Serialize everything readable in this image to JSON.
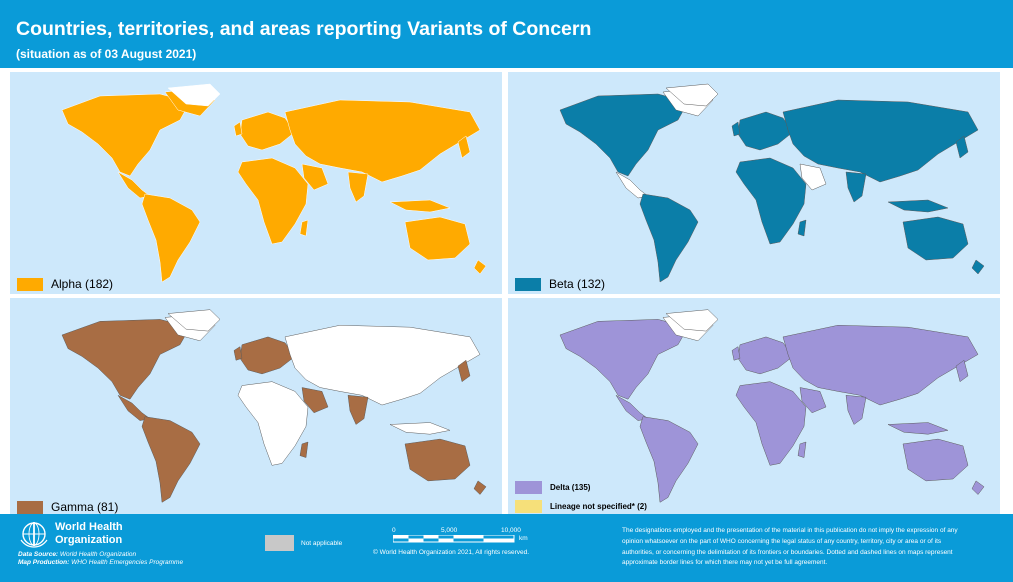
{
  "title": "Countries, territories, and areas reporting Variants of Concern",
  "subtitle": "(situation as of 03 August 2021)",
  "maps": [
    {
      "label": "Alpha (182)",
      "color": "#ffaa00"
    },
    {
      "label": "Beta (132)",
      "color": "#0b7ea8"
    },
    {
      "label": "Gamma (81)",
      "color": "#a86d44"
    },
    {
      "label": "Delta (135)",
      "color": "#9e94d8",
      "extra_label": "Lineage not specified* (2)",
      "extra_color": "#f6e07a"
    }
  ],
  "colors": {
    "header": "#0a9bd8",
    "ocean": "#cde8fb",
    "not_applicable": "#c8c8c8"
  },
  "footer": {
    "org_line1": "World Health",
    "org_line2": "Organization",
    "data_source_label": "Data Source:",
    "data_source": "World Health Organization",
    "map_production_label": "Map Production:",
    "map_production": "WHO Health Emergencies Programme",
    "not_applicable": "Not applicable",
    "scale_0": "0",
    "scale_5000": "5,000",
    "scale_10000": "10,000",
    "scale_unit": "km",
    "copyright": "© World Health Organization 2021, All rights reserved.",
    "disclaimer_1": "The designations employed and the presentation of the material in this publication do not imply the expression of any",
    "disclaimer_2": "opinion whatsoever on the part of WHO concerning the legal status of any country, territory, city or area or of its",
    "disclaimer_3": "authorities, or concerning the delimitation of its frontiers or boundaries. Dotted and dashed lines on maps represent",
    "disclaimer_4": "approximate border lines for which there may not yet be full agreement."
  }
}
